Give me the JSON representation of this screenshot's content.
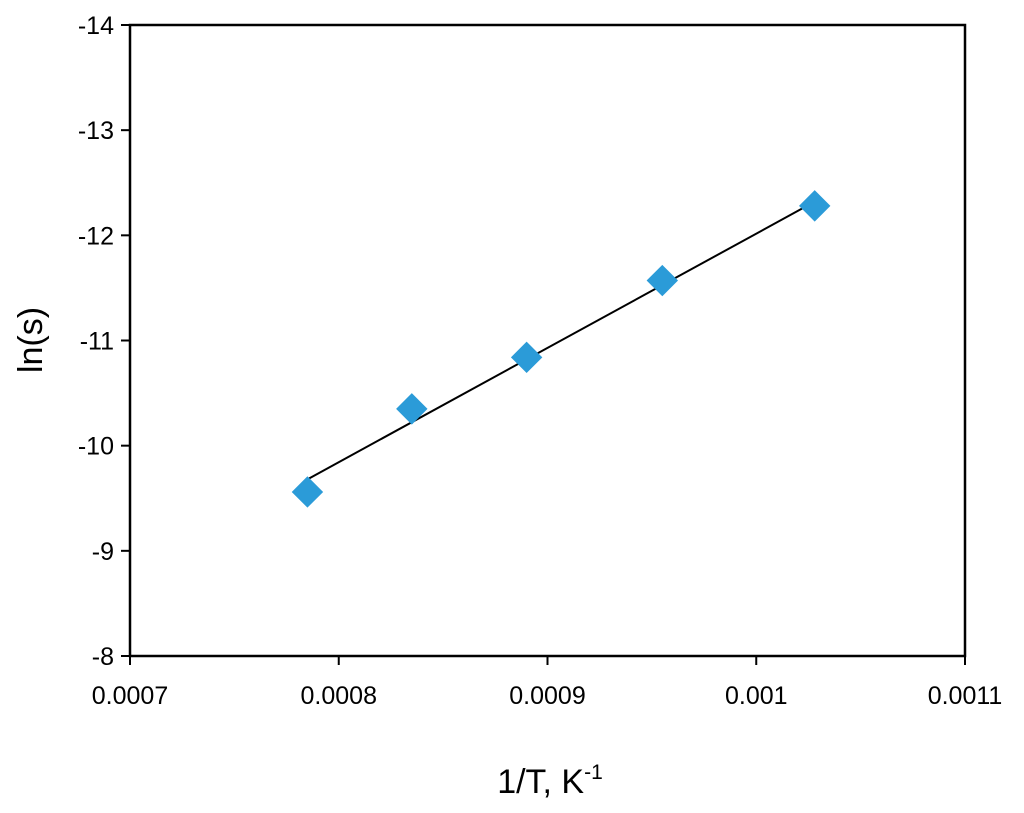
{
  "chart_data": {
    "type": "scatter",
    "xlabel": "1/T, K",
    "xlabel_superscript": "-1",
    "ylabel": "ln(s)",
    "xlim": [
      0.0007,
      0.0011
    ],
    "ylim": [
      -8,
      -14
    ],
    "y_axis_reversed": true,
    "x_ticks": [
      0.0007,
      0.0008,
      0.0009,
      0.001,
      0.0011
    ],
    "x_tick_labels": [
      "0.0007",
      "0.0008",
      "0.0009",
      "0.001",
      "0.0011"
    ],
    "y_ticks": [
      -8,
      -9,
      -10,
      -11,
      -12,
      -13,
      -14
    ],
    "y_tick_labels": [
      "-8",
      "-9",
      "-10",
      "-11",
      "-12",
      "-13",
      "-14"
    ],
    "grid": false,
    "legend": "none",
    "series": [
      {
        "marker": "diamond",
        "color": "#2b9bd8",
        "x": [
          0.000785,
          0.000835,
          0.00089,
          0.000955,
          0.001028
        ],
        "y": [
          -9.56,
          -10.35,
          -10.84,
          -11.57,
          -12.28
        ]
      }
    ],
    "trendline": {
      "type": "linear",
      "color": "#000000",
      "x": [
        0.000785,
        0.001028
      ],
      "y": [
        -9.68,
        -12.32
      ]
    }
  }
}
